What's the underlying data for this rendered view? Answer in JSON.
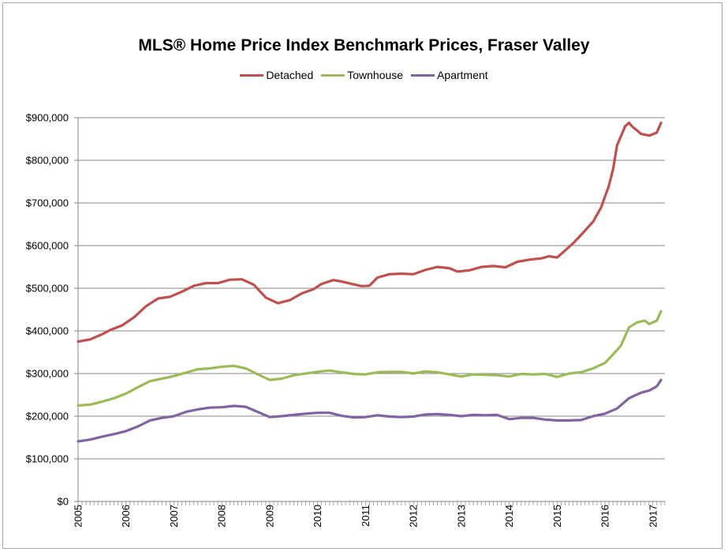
{
  "chart_data": {
    "type": "line",
    "title": "MLS® Home Price Index Benchmark Prices, Fraser Valley",
    "xlabel": "",
    "ylabel": "",
    "xlim": [
      2005.0,
      2017.25
    ],
    "ylim": [
      0,
      900000
    ],
    "x_ticks": [
      "2005",
      "2006",
      "2007",
      "2008",
      "2009",
      "2010",
      "2011",
      "2012",
      "2013",
      "2014",
      "2015",
      "2016",
      "2017"
    ],
    "y_ticks": [
      "$0",
      "$100,000",
      "$200,000",
      "$300,000",
      "$400,000",
      "$500,000",
      "$600,000",
      "$700,000",
      "$800,000",
      "$900,000"
    ],
    "grid": "horizontal",
    "legend_position": "top",
    "series": [
      {
        "name": "Detached",
        "color": "#c0504d",
        "points": [
          [
            2005.0,
            375000
          ],
          [
            2005.25,
            380000
          ],
          [
            2005.5,
            392000
          ],
          [
            2005.67,
            402000
          ],
          [
            2005.92,
            413000
          ],
          [
            2006.17,
            432000
          ],
          [
            2006.42,
            458000
          ],
          [
            2006.67,
            476000
          ],
          [
            2006.92,
            480000
          ],
          [
            2007.17,
            492000
          ],
          [
            2007.42,
            506000
          ],
          [
            2007.67,
            512000
          ],
          [
            2007.92,
            512000
          ],
          [
            2008.17,
            520000
          ],
          [
            2008.42,
            521000
          ],
          [
            2008.67,
            508000
          ],
          [
            2008.92,
            478000
          ],
          [
            2009.17,
            465000
          ],
          [
            2009.42,
            472000
          ],
          [
            2009.67,
            488000
          ],
          [
            2009.92,
            498000
          ],
          [
            2010.08,
            510000
          ],
          [
            2010.33,
            519000
          ],
          [
            2010.5,
            516000
          ],
          [
            2010.75,
            509000
          ],
          [
            2010.92,
            505000
          ],
          [
            2011.08,
            506000
          ],
          [
            2011.25,
            525000
          ],
          [
            2011.5,
            533000
          ],
          [
            2011.75,
            534000
          ],
          [
            2012.0,
            533000
          ],
          [
            2012.25,
            543000
          ],
          [
            2012.5,
            550000
          ],
          [
            2012.75,
            547000
          ],
          [
            2012.92,
            539000
          ],
          [
            2013.17,
            542000
          ],
          [
            2013.42,
            550000
          ],
          [
            2013.67,
            552000
          ],
          [
            2013.92,
            549000
          ],
          [
            2014.17,
            562000
          ],
          [
            2014.42,
            567000
          ],
          [
            2014.67,
            570000
          ],
          [
            2014.83,
            575000
          ],
          [
            2015.0,
            572000
          ],
          [
            2015.08,
            580000
          ],
          [
            2015.33,
            605000
          ],
          [
            2015.5,
            625000
          ],
          [
            2015.75,
            656000
          ],
          [
            2015.92,
            690000
          ],
          [
            2016.08,
            740000
          ],
          [
            2016.17,
            780000
          ],
          [
            2016.25,
            835000
          ],
          [
            2016.42,
            880000
          ],
          [
            2016.5,
            888000
          ],
          [
            2016.58,
            878000
          ],
          [
            2016.67,
            870000
          ],
          [
            2016.75,
            862000
          ],
          [
            2016.92,
            858000
          ],
          [
            2017.08,
            865000
          ],
          [
            2017.17,
            888000
          ]
        ]
      },
      {
        "name": "Townhouse",
        "color": "#9bbb59",
        "points": [
          [
            2005.0,
            225000
          ],
          [
            2005.25,
            227000
          ],
          [
            2005.5,
            234000
          ],
          [
            2005.75,
            242000
          ],
          [
            2006.0,
            253000
          ],
          [
            2006.25,
            268000
          ],
          [
            2006.5,
            282000
          ],
          [
            2006.75,
            288000
          ],
          [
            2007.0,
            294000
          ],
          [
            2007.25,
            302000
          ],
          [
            2007.5,
            310000
          ],
          [
            2007.75,
            312000
          ],
          [
            2008.0,
            316000
          ],
          [
            2008.25,
            318000
          ],
          [
            2008.5,
            312000
          ],
          [
            2008.75,
            298000
          ],
          [
            2009.0,
            285000
          ],
          [
            2009.25,
            288000
          ],
          [
            2009.5,
            296000
          ],
          [
            2009.75,
            300000
          ],
          [
            2010.0,
            304000
          ],
          [
            2010.25,
            307000
          ],
          [
            2010.5,
            303000
          ],
          [
            2010.75,
            299000
          ],
          [
            2011.0,
            298000
          ],
          [
            2011.25,
            303000
          ],
          [
            2011.5,
            304000
          ],
          [
            2011.75,
            304000
          ],
          [
            2012.0,
            300000
          ],
          [
            2012.25,
            305000
          ],
          [
            2012.5,
            303000
          ],
          [
            2012.75,
            298000
          ],
          [
            2013.0,
            293000
          ],
          [
            2013.25,
            298000
          ],
          [
            2013.5,
            297000
          ],
          [
            2013.75,
            296000
          ],
          [
            2014.0,
            293000
          ],
          [
            2014.25,
            299000
          ],
          [
            2014.5,
            298000
          ],
          [
            2014.75,
            299000
          ],
          [
            2015.0,
            292000
          ],
          [
            2015.25,
            300000
          ],
          [
            2015.5,
            303000
          ],
          [
            2015.75,
            312000
          ],
          [
            2016.0,
            325000
          ],
          [
            2016.17,
            345000
          ],
          [
            2016.33,
            365000
          ],
          [
            2016.5,
            408000
          ],
          [
            2016.67,
            420000
          ],
          [
            2016.83,
            424000
          ],
          [
            2016.92,
            416000
          ],
          [
            2017.08,
            424000
          ],
          [
            2017.17,
            446000
          ]
        ]
      },
      {
        "name": "Apartment",
        "color": "#8064a2",
        "points": [
          [
            2005.0,
            141000
          ],
          [
            2005.25,
            145000
          ],
          [
            2005.5,
            152000
          ],
          [
            2005.75,
            158000
          ],
          [
            2006.0,
            165000
          ],
          [
            2006.25,
            176000
          ],
          [
            2006.5,
            190000
          ],
          [
            2006.75,
            196000
          ],
          [
            2007.0,
            200000
          ],
          [
            2007.25,
            210000
          ],
          [
            2007.5,
            216000
          ],
          [
            2007.75,
            220000
          ],
          [
            2008.0,
            221000
          ],
          [
            2008.25,
            224000
          ],
          [
            2008.5,
            222000
          ],
          [
            2008.75,
            210000
          ],
          [
            2009.0,
            198000
          ],
          [
            2009.25,
            200000
          ],
          [
            2009.5,
            203000
          ],
          [
            2009.75,
            206000
          ],
          [
            2010.0,
            208000
          ],
          [
            2010.25,
            208000
          ],
          [
            2010.5,
            201000
          ],
          [
            2010.75,
            197000
          ],
          [
            2011.0,
            198000
          ],
          [
            2011.25,
            202000
          ],
          [
            2011.5,
            199000
          ],
          [
            2011.75,
            198000
          ],
          [
            2012.0,
            199000
          ],
          [
            2012.25,
            204000
          ],
          [
            2012.5,
            205000
          ],
          [
            2012.75,
            203000
          ],
          [
            2013.0,
            200000
          ],
          [
            2013.25,
            203000
          ],
          [
            2013.5,
            202000
          ],
          [
            2013.75,
            203000
          ],
          [
            2014.0,
            193000
          ],
          [
            2014.25,
            196000
          ],
          [
            2014.5,
            196000
          ],
          [
            2014.75,
            192000
          ],
          [
            2015.0,
            190000
          ],
          [
            2015.25,
            190000
          ],
          [
            2015.5,
            191000
          ],
          [
            2015.75,
            200000
          ],
          [
            2016.0,
            206000
          ],
          [
            2016.25,
            218000
          ],
          [
            2016.5,
            242000
          ],
          [
            2016.75,
            255000
          ],
          [
            2016.92,
            260000
          ],
          [
            2017.08,
            270000
          ],
          [
            2017.17,
            285000
          ]
        ]
      }
    ]
  }
}
